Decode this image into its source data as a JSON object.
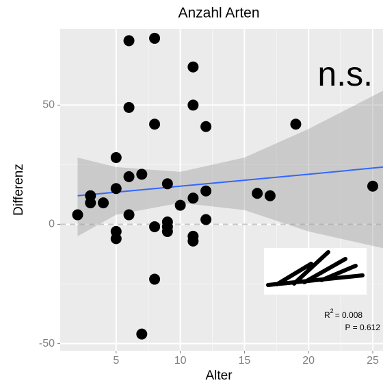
{
  "chart_data": {
    "type": "scatter",
    "title": "Anzahl Arten",
    "xlabel": "Alter",
    "ylabel": "Differenz",
    "x": [
      2,
      3,
      3,
      4,
      5,
      5,
      5,
      5,
      6,
      6,
      6,
      6,
      7,
      7,
      8,
      8,
      8,
      8,
      9,
      9,
      9,
      9,
      10,
      11,
      11,
      11,
      11,
      11,
      12,
      12,
      12,
      16,
      17,
      19,
      25
    ],
    "values": [
      4,
      12,
      9,
      9,
      28,
      15,
      -3,
      -6,
      77,
      49,
      20,
      4,
      21,
      -46,
      78,
      42,
      -1,
      -23,
      17,
      1,
      -1,
      -3,
      8,
      66,
      50,
      11,
      -5,
      -7,
      41,
      14,
      2,
      13,
      12,
      42,
      16
    ],
    "color": "#000000",
    "band": {
      "x": [
        2,
        5,
        10,
        15,
        20,
        25.8
      ],
      "lower": [
        -5,
        4,
        9,
        6,
        -3,
        -10
      ],
      "upper": [
        28,
        24,
        22,
        28,
        40,
        56
      ],
      "fit": [
        12,
        13.5,
        16,
        18.5,
        21,
        24
      ],
      "line_color": "#3366ff",
      "band_color": "#999999"
    },
    "hline": 0,
    "xlim": [
      0.64,
      25.8
    ],
    "ylim": [
      -53,
      82
    ],
    "xticks": [
      5,
      10,
      15,
      20,
      25
    ],
    "yticks": [
      -50,
      0,
      50
    ],
    "grid": true,
    "annotation": "n.s.",
    "r2_label": "R",
    "r2_sup": "2",
    "r2_text": "= 0.008",
    "p_text": "P = 0.612"
  }
}
